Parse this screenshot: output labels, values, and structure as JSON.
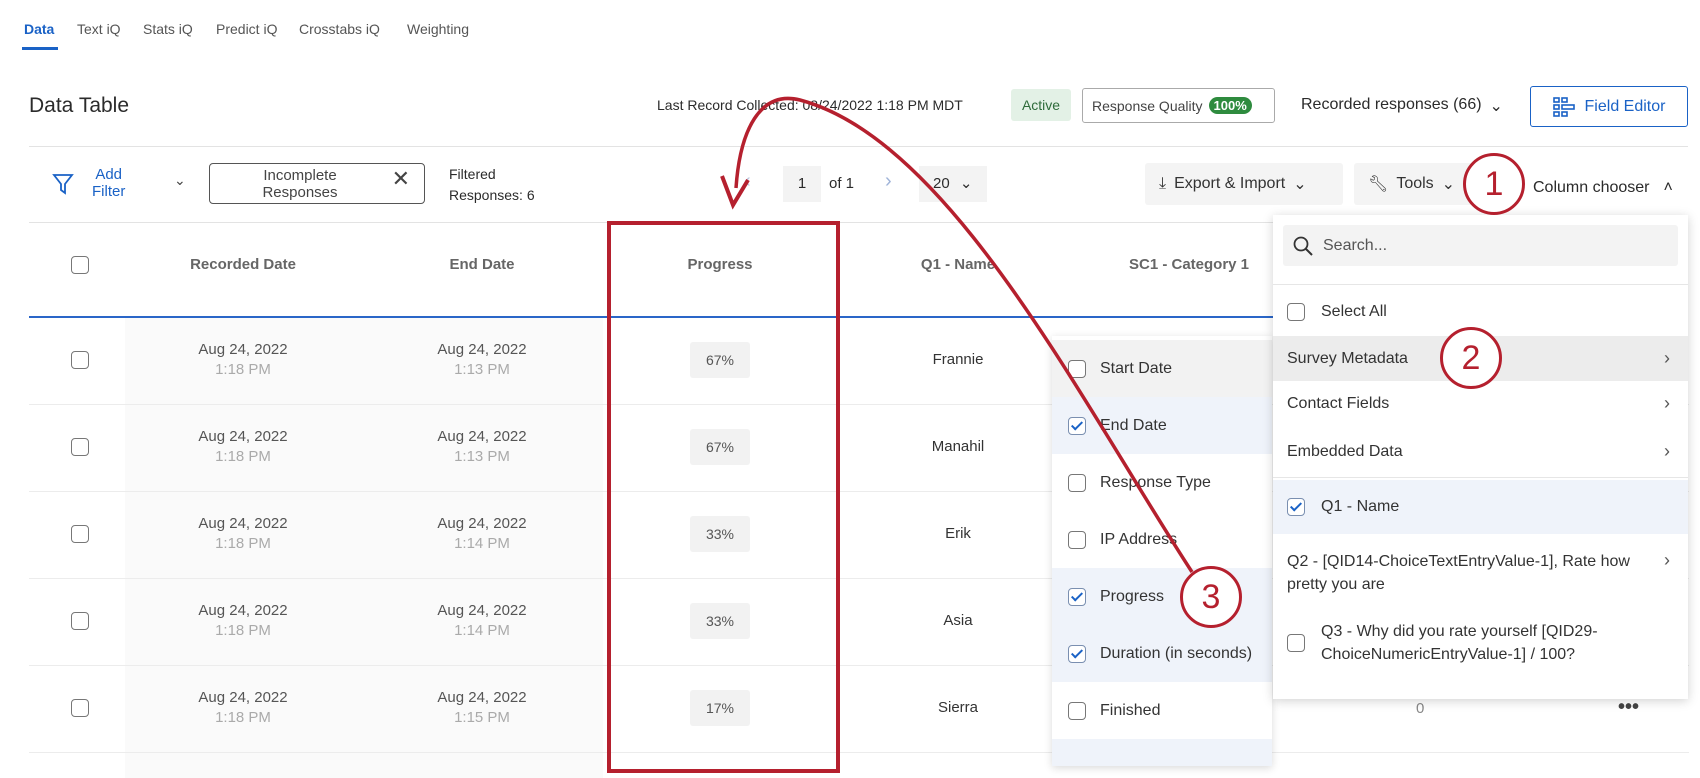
{
  "tabs": [
    "Data",
    "Text iQ",
    "Stats iQ",
    "Predict iQ",
    "Crosstabs iQ",
    "Weighting"
  ],
  "header": {
    "title": "Data Table",
    "last_record": "Last Record Collected: 08/24/2022 1:18 PM MDT",
    "status": "Active",
    "quality_label": "Response Quality",
    "quality_value": "100%",
    "recorded_responses": "Recorded responses (66)",
    "field_editor": "Field Editor"
  },
  "toolbar": {
    "add_filter_1": "Add",
    "add_filter_2": "Filter",
    "filter_chip_1": "Incomplete",
    "filter_chip_2": "Responses",
    "filtered_1": "Filtered",
    "filtered_2": "Responses: 6",
    "page": "1",
    "of_pages": "of 1",
    "per_page": "20",
    "export": "Export & Import",
    "tools": "Tools",
    "column_chooser": "Column chooser"
  },
  "columns": [
    "Recorded Date",
    "End Date",
    "Progress",
    "Q1 - Name",
    "SC1 - Category 1"
  ],
  "rows": [
    {
      "rec_date": "Aug 24, 2022",
      "rec_time": "1:18 PM",
      "end_date": "Aug 24, 2022",
      "end_time": "1:13 PM",
      "progress": "67%",
      "name": "Frannie"
    },
    {
      "rec_date": "Aug 24, 2022",
      "rec_time": "1:18 PM",
      "end_date": "Aug 24, 2022",
      "end_time": "1:13 PM",
      "progress": "67%",
      "name": "Manahil"
    },
    {
      "rec_date": "Aug 24, 2022",
      "rec_time": "1:18 PM",
      "end_date": "Aug 24, 2022",
      "end_time": "1:14 PM",
      "progress": "33%",
      "name": "Erik"
    },
    {
      "rec_date": "Aug 24, 2022",
      "rec_time": "1:18 PM",
      "end_date": "Aug 24, 2022",
      "end_time": "1:14 PM",
      "progress": "33%",
      "name": "Asia"
    },
    {
      "rec_date": "Aug 24, 2022",
      "rec_time": "1:18 PM",
      "end_date": "Aug 24, 2022",
      "end_time": "1:15 PM",
      "progress": "17%",
      "name": "Sierra"
    }
  ],
  "extra_cell": "0",
  "submenu": [
    {
      "label": "Start Date",
      "checked": false
    },
    {
      "label": "End Date",
      "checked": true
    },
    {
      "label": "Response Type",
      "checked": false
    },
    {
      "label": "IP Address",
      "checked": false
    },
    {
      "label": "Progress",
      "checked": true
    },
    {
      "label": "Duration (in seconds)",
      "checked": true
    },
    {
      "label": "Finished",
      "checked": false
    }
  ],
  "chooser": {
    "search_placeholder": "Search...",
    "select_all": "Select All",
    "survey_metadata": "Survey Metadata",
    "contact_fields": "Contact Fields",
    "embedded_data": "Embedded Data",
    "q1": "Q1 - Name",
    "q2": "Q2 - [QID14-ChoiceTextEntryValue-1], Rate how pretty you are",
    "q3": "Q3 - Why did you rate yourself [QID29-ChoiceNumericEntryValue-1] / 100?"
  },
  "annotations": [
    "1",
    "2",
    "3"
  ],
  "colors": {
    "accent": "#1a62c6",
    "annotation": "#b5202e",
    "active_badge": "#e3f1e6",
    "quality_badge": "#2e8b3e"
  }
}
